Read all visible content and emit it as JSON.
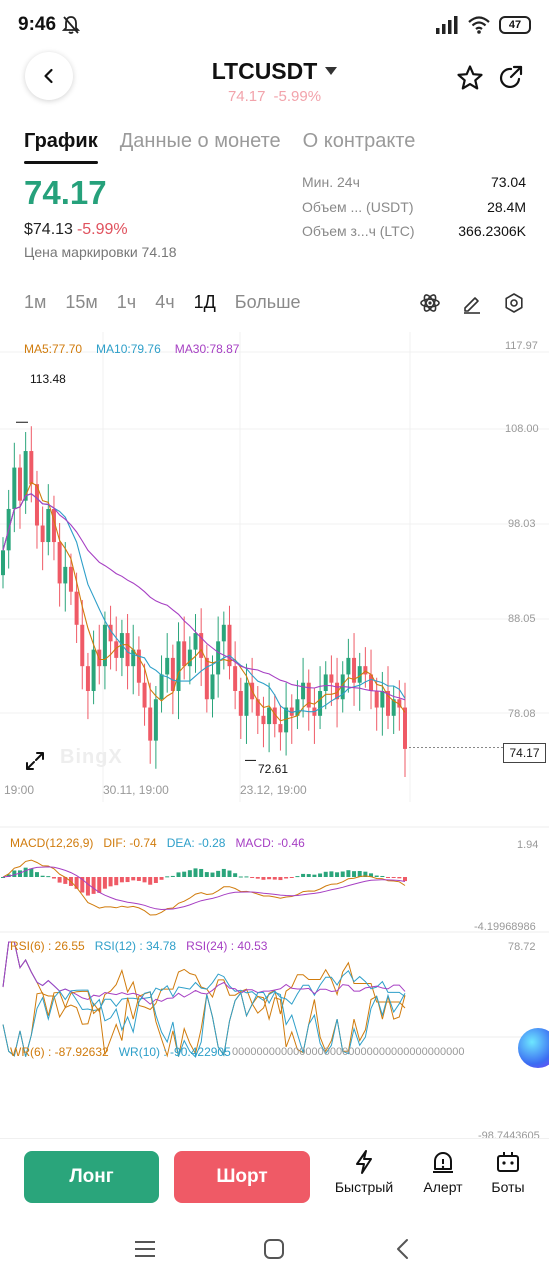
{
  "status_bar": {
    "time": "9:46",
    "battery": "47"
  },
  "header": {
    "symbol": "LTCUSDT",
    "price": "74.17",
    "change": "-5.99%"
  },
  "tabs": [
    {
      "label": "График",
      "active": true
    },
    {
      "label": "Данные о монете",
      "active": false
    },
    {
      "label": "О контракте",
      "active": false
    }
  ],
  "ticker": {
    "last_price": "74.17",
    "usd_price": "$74.13",
    "usd_change": "-5.99%",
    "mark_price": "Цена маркировки 74.18",
    "stats": [
      {
        "label": "Мин. 24ч",
        "value": "73.04"
      },
      {
        "label": "Объем ... (USDT)",
        "value": "28.4M"
      },
      {
        "label": "Объем з...ч (LTC)",
        "value": "366.2306K"
      }
    ]
  },
  "intervals": [
    {
      "label": "1м",
      "active": false
    },
    {
      "label": "15м",
      "active": false
    },
    {
      "label": "1ч",
      "active": false
    },
    {
      "label": "4ч",
      "active": false
    },
    {
      "label": "1Д",
      "active": true
    },
    {
      "label": "Больше",
      "active": false
    }
  ],
  "chart": {
    "ma_legend": [
      {
        "label": "MA5:77.70",
        "color": "#d07b0c"
      },
      {
        "label": "MA10:79.76",
        "color": "#2e9fc9"
      },
      {
        "label": "MA30:78.87",
        "color": "#a63fc3"
      }
    ],
    "watermark": "BingX",
    "high_label": "113.48",
    "low_label": "72.61",
    "last_price_tag": "74.17",
    "price_axis": [
      "117.97",
      "108.00",
      "98.03",
      "88.05",
      "78.08"
    ],
    "date_axis": [
      "19:00",
      "30.11, 19:00",
      "23.12, 19:00"
    ],
    "macd": {
      "legend": [
        {
          "label": "MACD(12,26,9)",
          "color": "#d07b0c"
        },
        {
          "label": "DIF: -0.74",
          "color": "#d07b0c"
        },
        {
          "label": "DEA: -0.28",
          "color": "#2e9fc9"
        },
        {
          "label": "MACD: -0.46",
          "color": "#a63fc3"
        }
      ],
      "axis_top": "1.94",
      "axis_bottom": "-4.19968986"
    },
    "rsi": {
      "legend": [
        {
          "label": "RSI(6) : 26.55",
          "color": "#d07b0c"
        },
        {
          "label": "RSI(12) : 34.78",
          "color": "#2e9fc9"
        },
        {
          "label": "RSI(24) : 40.53",
          "color": "#a63fc3"
        }
      ],
      "axis_top": "78.72"
    },
    "wr": {
      "legend": [
        {
          "label": "WR(6) : -87.92632",
          "color": "#d07b0c"
        },
        {
          "label": "WR(10) : -90.422905",
          "color": "#2e9fc9"
        }
      ],
      "axis_top": "00000000000000000000000000000000000000",
      "axis_bottom": "-98.7443605"
    }
  },
  "chart_data": {
    "type": "candlestick",
    "title": "",
    "interval": "1Д",
    "ylim": [
      72.61,
      117.97
    ],
    "price_ticks": [
      117.97,
      108.0,
      98.03,
      88.05,
      78.08
    ],
    "high": 113.48,
    "low": 72.61,
    "last": 74.17,
    "close_series": [
      98,
      103,
      108,
      104,
      110,
      106,
      101,
      99,
      103,
      99,
      94,
      96,
      93,
      89,
      84,
      81,
      86,
      84,
      89,
      87,
      85,
      88,
      84,
      86,
      82,
      79,
      75,
      80,
      83,
      85,
      81,
      87,
      84,
      86,
      88,
      85,
      80,
      83,
      87,
      89,
      84,
      81,
      78,
      82,
      80,
      78,
      77,
      79,
      77,
      76,
      79,
      78,
      80,
      82,
      79,
      78,
      81,
      83,
      82,
      80,
      83,
      85,
      82,
      84,
      83,
      81,
      79,
      81,
      78,
      80,
      79,
      74
    ]
  },
  "actions": {
    "long": "Лонг",
    "short": "Шорт",
    "quick": "Быстрый",
    "alert": "Алерт",
    "bots": "Боты"
  }
}
